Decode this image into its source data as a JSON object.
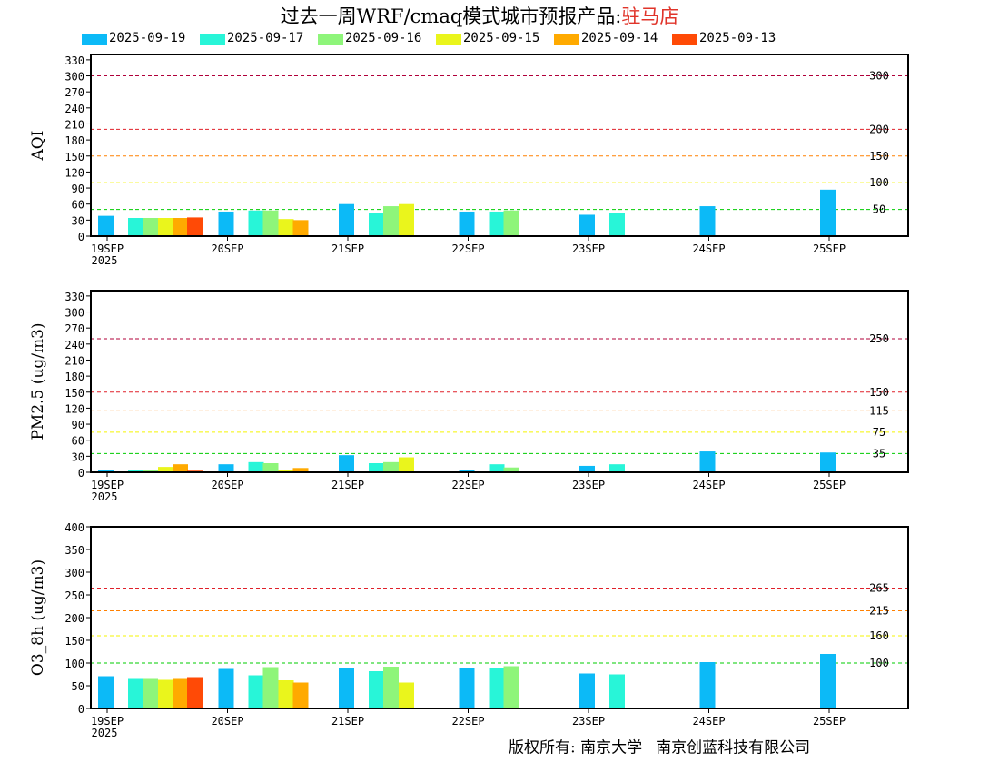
{
  "title": {
    "main": "过去一周WRF/cmaq模式城市预报产品:",
    "station": "驻马店"
  },
  "footer": {
    "copyright": "版权所有: 南京大学",
    "company": "南京创蓝科技有限公司"
  },
  "colors": {
    "2025-09-19": "#0cbaf7",
    "2025-09-17": "#28f5d8",
    "2025-09-16": "#8ef57a",
    "2025-09-15": "#eaf51c",
    "2025-09-14": "#ffaa00",
    "2025-09-13": "#ff4a06"
  },
  "chart_data": [
    {
      "type": "bar",
      "ylabel": "AQI",
      "ylim": [
        0,
        340
      ],
      "yticks": [
        0,
        30,
        60,
        90,
        120,
        150,
        180,
        210,
        240,
        270,
        300,
        330
      ],
      "thresholds": [
        {
          "value": 300,
          "label": "300",
          "color": "#b0003a"
        },
        {
          "value": 200,
          "label": "200",
          "color": "#e0202a"
        },
        {
          "value": 150,
          "label": "150",
          "color": "#ff8000"
        },
        {
          "value": 100,
          "label": "100",
          "color": "#f5f500"
        },
        {
          "value": 50,
          "label": "50",
          "color": "#00cc00"
        }
      ],
      "x_ticks": [
        {
          "label": "19SEP",
          "sub": "2025"
        },
        {
          "label": "20SEP"
        },
        {
          "label": "21SEP"
        },
        {
          "label": "22SEP"
        },
        {
          "label": "23SEP"
        },
        {
          "label": "24SEP"
        },
        {
          "label": "25SEP"
        }
      ],
      "series": [
        {
          "name": "2025-09-19",
          "values": [
            38,
            46,
            60,
            46,
            40,
            56,
            87
          ]
        },
        {
          "name": "2025-09-17",
          "values": [
            34,
            48,
            43,
            46,
            43,
            null,
            null
          ]
        },
        {
          "name": "2025-09-16",
          "values": [
            34,
            48,
            56,
            48,
            null,
            null,
            null
          ]
        },
        {
          "name": "2025-09-15",
          "values": [
            34,
            32,
            60,
            null,
            null,
            null,
            null
          ]
        },
        {
          "name": "2025-09-14",
          "values": [
            34,
            30,
            null,
            null,
            null,
            null,
            null
          ]
        },
        {
          "name": "2025-09-13",
          "values": [
            35,
            null,
            null,
            null,
            null,
            null,
            null
          ]
        }
      ]
    },
    {
      "type": "bar",
      "ylabel": "PM2.5 (ug/m3)",
      "ylim": [
        0,
        340
      ],
      "yticks": [
        0,
        30,
        60,
        90,
        120,
        150,
        180,
        210,
        240,
        270,
        300,
        330
      ],
      "thresholds": [
        {
          "value": 250,
          "label": "250",
          "color": "#b0003a"
        },
        {
          "value": 150,
          "label": "150",
          "color": "#e0202a"
        },
        {
          "value": 115,
          "label": "115",
          "color": "#ff8000"
        },
        {
          "value": 75,
          "label": "75",
          "color": "#f5f500"
        },
        {
          "value": 35,
          "label": "35",
          "color": "#00cc00"
        }
      ],
      "x_ticks": [
        {
          "label": "19SEP",
          "sub": "2025"
        },
        {
          "label": "20SEP"
        },
        {
          "label": "21SEP"
        },
        {
          "label": "22SEP"
        },
        {
          "label": "23SEP"
        },
        {
          "label": "24SEP"
        },
        {
          "label": "25SEP"
        }
      ],
      "series": [
        {
          "name": "2025-09-19",
          "values": [
            5,
            15,
            32,
            5,
            12,
            39,
            37
          ]
        },
        {
          "name": "2025-09-17",
          "values": [
            5,
            19,
            17,
            15,
            15,
            null,
            null
          ]
        },
        {
          "name": "2025-09-16",
          "values": [
            5,
            17,
            19,
            9,
            null,
            null,
            null
          ]
        },
        {
          "name": "2025-09-15",
          "values": [
            10,
            4,
            28,
            null,
            null,
            null,
            null
          ]
        },
        {
          "name": "2025-09-14",
          "values": [
            15,
            8,
            null,
            null,
            null,
            null,
            null
          ]
        },
        {
          "name": "2025-09-13",
          "values": [
            3,
            null,
            null,
            null,
            null,
            null,
            null
          ]
        }
      ]
    },
    {
      "type": "bar",
      "ylabel": "O3_8h (ug/m3)",
      "ylim": [
        0,
        400
      ],
      "yticks": [
        0,
        50,
        100,
        150,
        200,
        250,
        300,
        350,
        400
      ],
      "thresholds": [
        {
          "value": 265,
          "label": "265",
          "color": "#e0202a"
        },
        {
          "value": 215,
          "label": "215",
          "color": "#ff8000"
        },
        {
          "value": 160,
          "label": "160",
          "color": "#f5f500"
        },
        {
          "value": 100,
          "label": "100",
          "color": "#00cc00"
        }
      ],
      "x_ticks": [
        {
          "label": "19SEP",
          "sub": "2025"
        },
        {
          "label": "20SEP"
        },
        {
          "label": "21SEP"
        },
        {
          "label": "22SEP"
        },
        {
          "label": "23SEP"
        },
        {
          "label": "24SEP"
        },
        {
          "label": "25SEP"
        }
      ],
      "series": [
        {
          "name": "2025-09-19",
          "values": [
            71,
            87,
            89,
            89,
            77,
            102,
            120
          ]
        },
        {
          "name": "2025-09-17",
          "values": [
            65,
            73,
            82,
            88,
            75,
            null,
            null
          ]
        },
        {
          "name": "2025-09-16",
          "values": [
            65,
            91,
            92,
            93,
            null,
            null,
            null
          ]
        },
        {
          "name": "2025-09-15",
          "values": [
            63,
            62,
            57,
            null,
            null,
            null,
            null
          ]
        },
        {
          "name": "2025-09-14",
          "values": [
            65,
            57,
            null,
            null,
            null,
            null,
            null
          ]
        },
        {
          "name": "2025-09-13",
          "values": [
            69,
            null,
            null,
            null,
            null,
            null,
            null
          ]
        }
      ]
    }
  ]
}
